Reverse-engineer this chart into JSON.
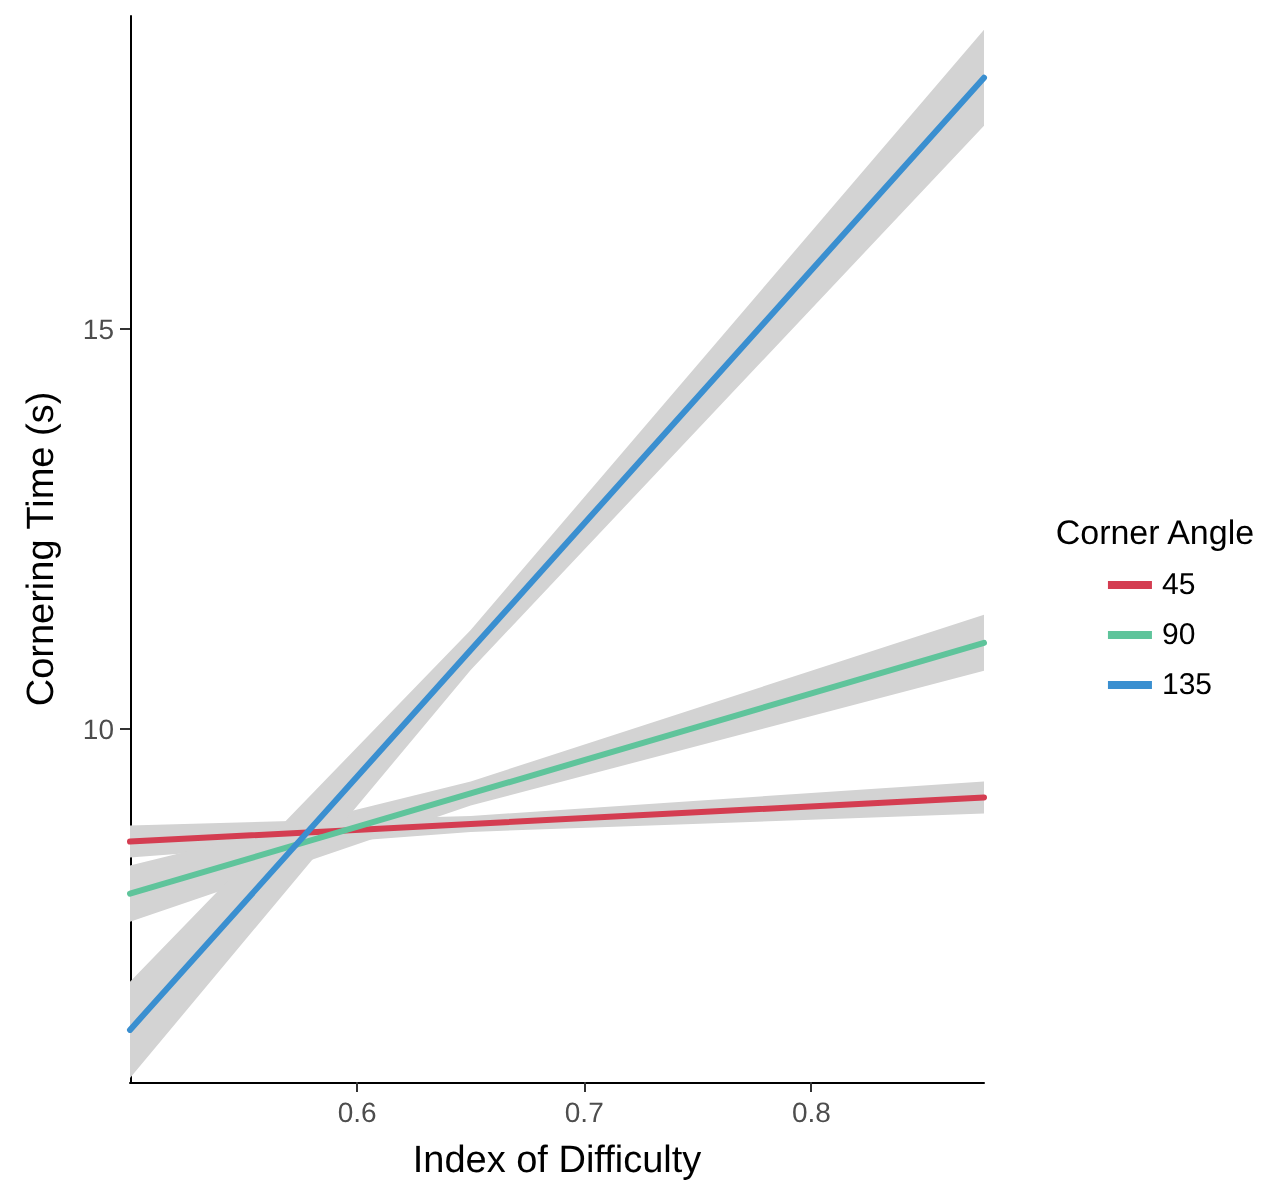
{
  "chart_data": {
    "type": "line",
    "xlabel": "Index of Difficulty",
    "ylabel": "Cornering Time (s)",
    "legend_title": "Corner Angle",
    "legend": "right",
    "grid": false,
    "marker": "none",
    "line_style": "solid",
    "xlim": [
      0.5,
      0.876
    ],
    "xticks": [
      0.6,
      0.7,
      0.8
    ],
    "ylim": [
      5.6,
      18.9
    ],
    "yticks": [
      10,
      15
    ],
    "series": [
      {
        "name": "45",
        "color": "#d43d51",
        "x": [
          0.5,
          0.65,
          0.876
        ],
        "values": [
          8.6,
          8.82,
          9.15
        ],
        "lower": [
          8.4,
          8.72,
          8.95
        ],
        "upper": [
          8.8,
          8.92,
          9.35
        ]
      },
      {
        "name": "90",
        "color": "#5fc49b",
        "x": [
          0.5,
          0.65,
          0.876
        ],
        "values": [
          7.95,
          9.2,
          11.08
        ],
        "lower": [
          7.6,
          9.05,
          10.73
        ],
        "upper": [
          8.3,
          9.35,
          11.43
        ]
      },
      {
        "name": "135",
        "color": "#3a8fd0",
        "x": [
          0.5,
          0.65,
          0.876
        ],
        "values": [
          6.25,
          10.99,
          18.13
        ],
        "lower": [
          5.65,
          10.74,
          17.53
        ],
        "upper": [
          6.85,
          11.24,
          18.73
        ]
      }
    ]
  }
}
